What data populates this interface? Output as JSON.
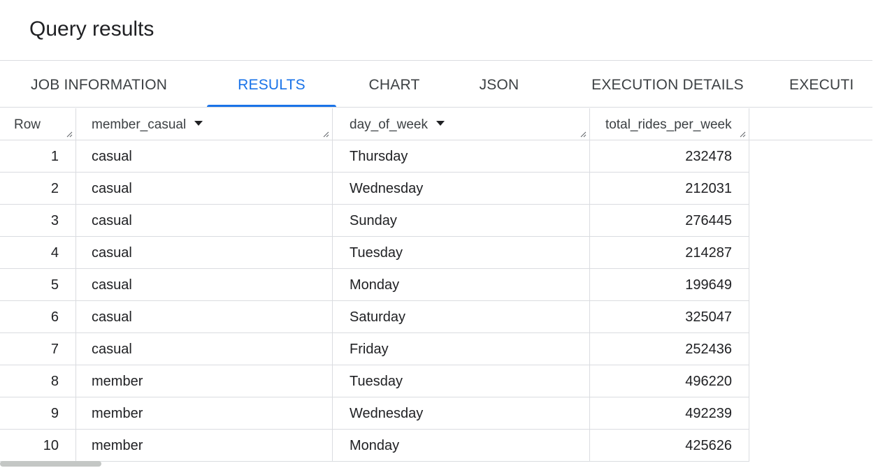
{
  "page": {
    "title": "Query results"
  },
  "tabs": [
    {
      "label": "JOB INFORMATION",
      "active": false
    },
    {
      "label": "RESULTS",
      "active": true
    },
    {
      "label": "CHART",
      "active": false
    },
    {
      "label": "JSON",
      "active": false
    },
    {
      "label": "EXECUTION DETAILS",
      "active": false
    },
    {
      "label": "EXECUTI",
      "active": false
    }
  ],
  "table": {
    "columns": [
      "Row",
      "member_casual",
      "day_of_week",
      "total_rides_per_week"
    ],
    "rows": [
      [
        "1",
        "casual",
        "Thursday",
        "232478"
      ],
      [
        "2",
        "casual",
        "Wednesday",
        "212031"
      ],
      [
        "3",
        "casual",
        "Sunday",
        "276445"
      ],
      [
        "4",
        "casual",
        "Tuesday",
        "214287"
      ],
      [
        "5",
        "casual",
        "Monday",
        "199649"
      ],
      [
        "6",
        "casual",
        "Saturday",
        "325047"
      ],
      [
        "7",
        "casual",
        "Friday",
        "252436"
      ],
      [
        "8",
        "member",
        "Tuesday",
        "496220"
      ],
      [
        "9",
        "member",
        "Wednesday",
        "492239"
      ],
      [
        "10",
        "member",
        "Monday",
        "425626"
      ]
    ]
  },
  "colors": {
    "accent": "#1a73e8",
    "text": "#202124",
    "border": "#dadce0"
  }
}
